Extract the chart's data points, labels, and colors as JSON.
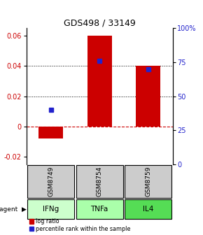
{
  "title": "GDS498 / 33149",
  "categories": [
    "GSM8749",
    "GSM8754",
    "GSM8759"
  ],
  "agents": [
    "IFNg",
    "TNFa",
    "IL4"
  ],
  "log_ratios": [
    -0.008,
    0.06,
    0.04
  ],
  "percentile_ranks": [
    40,
    76,
    70
  ],
  "bar_color": "#cc0000",
  "dot_color": "#2222cc",
  "ylim_left": [
    -0.025,
    0.065
  ],
  "ylim_right": [
    0,
    100
  ],
  "yticks_left": [
    -0.02,
    0.0,
    0.02,
    0.04,
    0.06
  ],
  "yticks_right": [
    0,
    25,
    50,
    75,
    100
  ],
  "ytick_labels_right": [
    "0",
    "25",
    "50",
    "75",
    "100%"
  ],
  "dotted_lines": [
    0.02,
    0.04
  ],
  "agent_colors": [
    "#ccffcc",
    "#aaffaa",
    "#55dd55"
  ],
  "gsm_bg_color": "#cccccc",
  "bar_width": 0.5,
  "legend_log_ratio": "log ratio",
  "legend_percentile": "percentile rank within the sample",
  "agent_label": "agent"
}
